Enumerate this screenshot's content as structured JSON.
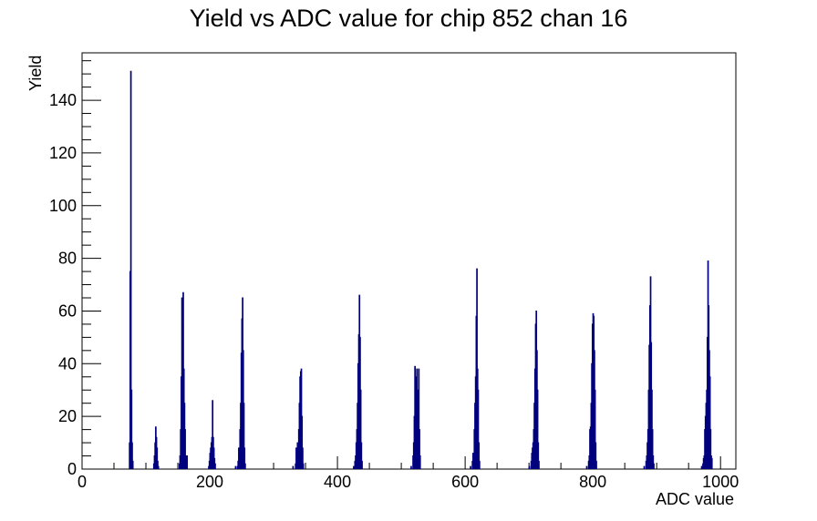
{
  "chart_data": {
    "type": "bar",
    "title": "Yield vs ADC value for chip 852 chan 16",
    "xlabel": "ADC value",
    "ylabel": "Yield",
    "xlim": [
      0,
      1024
    ],
    "ylim": [
      0,
      158
    ],
    "x_ticks": [
      "0",
      "200",
      "400",
      "600",
      "800",
      "1000"
    ],
    "y_ticks": [
      "0",
      "20",
      "40",
      "60",
      "80",
      "100",
      "120",
      "140"
    ],
    "grid": false,
    "legend": "none",
    "line_color": "#00007f",
    "bin_width": 1,
    "peaks": [
      {
        "x": [
          73,
          74,
          75,
          76,
          77,
          78,
          79,
          80
        ],
        "y": [
          0,
          10,
          75,
          151,
          30,
          10,
          3,
          0
        ]
      },
      {
        "x": [
          112,
          113,
          114,
          115,
          116,
          117,
          118,
          119
        ],
        "y": [
          2,
          5,
          10,
          16,
          12,
          8,
          3,
          1
        ]
      },
      {
        "x": [
          152,
          153,
          154,
          155,
          156,
          157,
          158,
          159,
          160,
          161,
          162,
          163,
          164
        ],
        "y": [
          2,
          5,
          15,
          35,
          65,
          55,
          67,
          38,
          25,
          15,
          5,
          2,
          5
        ]
      },
      {
        "x": [
          198,
          199,
          200,
          201,
          202,
          203,
          204,
          205,
          206,
          207,
          208
        ],
        "y": [
          1,
          3,
          6,
          8,
          10,
          12,
          26,
          12,
          8,
          4,
          2
        ]
      },
      {
        "x": [
          240,
          243,
          244,
          245,
          246,
          247,
          248,
          249,
          250,
          251,
          252,
          253,
          254,
          255
        ],
        "y": [
          1,
          1,
          3,
          8,
          6,
          15,
          25,
          44,
          57,
          65,
          45,
          25,
          8,
          2
        ]
      },
      {
        "x": [
          330,
          334,
          335,
          336,
          337,
          338,
          339,
          340,
          341,
          342,
          343,
          344,
          345,
          346
        ],
        "y": [
          1,
          2,
          8,
          6,
          10,
          5,
          15,
          25,
          35,
          37,
          38,
          20,
          8,
          2
        ]
      },
      {
        "x": [
          425,
          427,
          428,
          429,
          430,
          431,
          432,
          433,
          434,
          435,
          436,
          437,
          438
        ],
        "y": [
          1,
          3,
          5,
          10,
          15,
          25,
          40,
          51,
          66,
          50,
          30,
          10,
          3
        ]
      },
      {
        "x": [
          515,
          518,
          519,
          520,
          521,
          522,
          523,
          524,
          525,
          526,
          527,
          528,
          529
        ],
        "y": [
          1,
          5,
          10,
          20,
          39,
          30,
          35,
          38,
          25,
          30,
          38,
          15,
          5
        ]
      },
      {
        "x": [
          608,
          611,
          612,
          613,
          614,
          615,
          616,
          617,
          618,
          619,
          620,
          621,
          622
        ],
        "y": [
          1,
          3,
          6,
          5,
          15,
          25,
          35,
          58,
          76,
          38,
          30,
          10,
          3
        ]
      },
      {
        "x": [
          700,
          703,
          704,
          705,
          706,
          707,
          708,
          709,
          710,
          711,
          712,
          713,
          714,
          715
        ],
        "y": [
          1,
          3,
          6,
          8,
          10,
          15,
          25,
          38,
          55,
          60,
          45,
          30,
          10,
          3
        ]
      },
      {
        "x": [
          790,
          793,
          794,
          795,
          796,
          797,
          798,
          799,
          800,
          801,
          802,
          803,
          804,
          805
        ],
        "y": [
          1,
          3,
          5,
          15,
          16,
          25,
          40,
          55,
          59,
          58,
          45,
          30,
          10,
          3
        ]
      },
      {
        "x": [
          880,
          883,
          884,
          885,
          886,
          887,
          888,
          889,
          890,
          891,
          892,
          893,
          894,
          895
        ],
        "y": [
          1,
          3,
          5,
          10,
          15,
          30,
          47,
          62,
          73,
          48,
          30,
          15,
          5,
          2
        ]
      },
      {
        "x": [
          970,
          972,
          973,
          974,
          975,
          976,
          977,
          978,
          979,
          980,
          981,
          982,
          983,
          984,
          985,
          986
        ],
        "y": [
          1,
          2,
          4,
          5,
          15,
          20,
          25,
          30,
          50,
          79,
          62,
          45,
          35,
          15,
          5,
          4
        ]
      }
    ]
  }
}
